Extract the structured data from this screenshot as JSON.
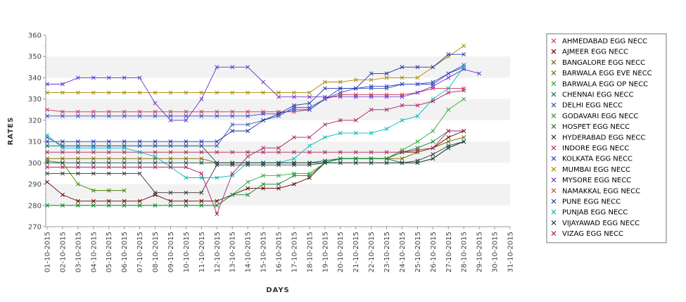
{
  "chart_data": {
    "type": "line",
    "xlabel": "DAYS",
    "ylabel": "RATES",
    "ylim": [
      270,
      360
    ],
    "yticks": [
      270,
      280,
      290,
      300,
      310,
      320,
      330,
      340,
      350,
      360
    ],
    "grid": "alternating horizontal bands",
    "legend_position": "right",
    "categories": [
      "01-10-2015",
      "02-10-2015",
      "03-10-2015",
      "04-10-2015",
      "05-10-2015",
      "06-10-2015",
      "07-10-2015",
      "08-10-2015",
      "09-10-2015",
      "10-10-2015",
      "11-10-2015",
      "12-10-2015",
      "13-10-2015",
      "14-10-2015",
      "15-10-2015",
      "16-10-2015",
      "17-10-2015",
      "18-10-2015",
      "19-10-2015",
      "20-10-2015",
      "21-10-2015",
      "22-10-2015",
      "23-10-2015",
      "24-10-2015",
      "25-10-2015",
      "26-10-2015",
      "27-10-2015",
      "28-10-2015",
      "29-10-2015",
      "30-10-2015",
      "31-10-2015"
    ],
    "series": [
      {
        "name": "AHMEDABAD EGG NECC",
        "color": "#cc3355",
        "values": [
          325,
          324,
          324,
          324,
          324,
          324,
          324,
          324,
          324,
          324,
          324,
          324,
          324,
          324,
          324,
          324,
          324,
          325,
          330,
          332,
          332,
          332,
          332,
          332,
          333,
          335,
          335,
          335,
          null,
          null,
          null
        ]
      },
      {
        "name": "AJMEER EGG NECC",
        "color": "#660000",
        "values": [
          291,
          285,
          282,
          282,
          282,
          282,
          282,
          285,
          282,
          282,
          282,
          282,
          285,
          288,
          288,
          288,
          290,
          293,
          300,
          302,
          302,
          302,
          302,
          305,
          305,
          307,
          312,
          315,
          null,
          null,
          null
        ]
      },
      {
        "name": "BANGALORE EGG NECC",
        "color": "#776600",
        "values": [
          302,
          302,
          302,
          302,
          302,
          302,
          302,
          302,
          302,
          302,
          302,
          300,
          300,
          300,
          300,
          300,
          300,
          300,
          301,
          302,
          302,
          302,
          302,
          302,
          305,
          307,
          310,
          312,
          null,
          null,
          null
        ]
      },
      {
        "name": "BARWALA EGG EVE NECC",
        "color": "#448800",
        "values": [
          301,
          300,
          290,
          287,
          287,
          287,
          null,
          null,
          null,
          null,
          null,
          null,
          null,
          null,
          null,
          null,
          null,
          null,
          null,
          null,
          null,
          null,
          null,
          null,
          null,
          null,
          null,
          null,
          null,
          null,
          null
        ]
      },
      {
        "name": "BARWALA EGG OP NECC",
        "color": "#33aa33",
        "values": [
          280,
          280,
          280,
          280,
          280,
          280,
          280,
          280,
          280,
          280,
          280,
          280,
          285,
          291,
          294,
          294,
          295,
          295,
          300,
          302,
          302,
          302,
          302,
          306,
          310,
          315,
          325,
          330,
          null,
          null,
          null
        ]
      },
      {
        "name": "CHENNAI EGG NECC",
        "color": "#006655",
        "values": [
          308,
          308,
          308,
          308,
          308,
          308,
          308,
          308,
          308,
          308,
          308,
          300,
          300,
          300,
          300,
          300,
          300,
          300,
          301,
          302,
          302,
          302,
          302,
          300,
          300,
          302,
          307,
          310,
          null,
          null,
          null
        ]
      },
      {
        "name": "DELHI EGG NECC",
        "color": "#3355aa",
        "values": [
          312,
          308,
          308,
          308,
          308,
          308,
          308,
          308,
          308,
          308,
          308,
          308,
          318,
          318,
          320,
          322,
          326,
          326,
          330,
          333,
          335,
          335,
          335,
          337,
          337,
          338,
          342,
          346,
          null,
          null,
          null
        ]
      },
      {
        "name": "GODAVARI EGG NECC",
        "color": "#558833",
        "values": [
          null,
          null,
          null,
          null,
          null,
          null,
          null,
          null,
          null,
          null,
          null,
          null,
          null,
          null,
          null,
          null,
          null,
          null,
          null,
          null,
          null,
          null,
          null,
          null,
          null,
          null,
          null,
          null,
          null,
          null,
          null
        ]
      },
      {
        "name": "HOSPET EGG NECC",
        "color": "#118833",
        "values": [
          280,
          280,
          280,
          280,
          280,
          280,
          280,
          280,
          280,
          280,
          280,
          280,
          285,
          285,
          290,
          290,
          294,
          294,
          300,
          302,
          302,
          302,
          302,
          305,
          307,
          310,
          315,
          315,
          null,
          null,
          null
        ]
      },
      {
        "name": "HYDERABAD EGG NECC",
        "color": "#333333",
        "values": [
          295,
          295,
          295,
          295,
          295,
          295,
          295,
          286,
          286,
          286,
          286,
          299,
          299,
          299,
          299,
          299,
          299,
          299,
          300,
          300,
          300,
          300,
          300,
          300,
          300,
          302,
          307,
          310,
          null,
          null,
          null
        ]
      },
      {
        "name": "INDORE EGG NECC",
        "color": "#aa2255",
        "values": [
          305,
          305,
          305,
          305,
          305,
          305,
          305,
          305,
          305,
          305,
          305,
          305,
          305,
          305,
          305,
          305,
          305,
          305,
          305,
          305,
          305,
          305,
          305,
          305,
          306,
          307,
          315,
          315,
          null,
          null,
          null
        ]
      },
      {
        "name": "KOLKATA EGG NECC",
        "color": "#3344cc",
        "values": [
          322,
          322,
          322,
          322,
          322,
          322,
          322,
          322,
          322,
          322,
          322,
          322,
          322,
          322,
          323,
          323,
          325,
          325,
          330,
          335,
          335,
          336,
          336,
          337,
          337,
          337,
          342,
          345,
          null,
          null,
          null
        ]
      },
      {
        "name": "MUMBAI EGG NECC",
        "color": "#aa8800",
        "values": [
          333,
          333,
          333,
          333,
          333,
          333,
          333,
          333,
          333,
          333,
          333,
          333,
          333,
          333,
          333,
          333,
          333,
          333,
          338,
          338,
          339,
          339,
          340,
          340,
          340,
          345,
          350,
          355,
          null,
          null,
          null
        ]
      },
      {
        "name": "MYSORE EGG NECC",
        "color": "#6633cc",
        "values": [
          337,
          337,
          340,
          340,
          340,
          340,
          340,
          328,
          320,
          320,
          330,
          345,
          345,
          345,
          338,
          331,
          331,
          331,
          331,
          331,
          331,
          331,
          331,
          331,
          333,
          336,
          340,
          344,
          342,
          null,
          null
        ]
      },
      {
        "name": "NAMAKKAL EGG NECC",
        "color": "#cc5533",
        "values": [
          null,
          null,
          null,
          null,
          null,
          null,
          null,
          null,
          null,
          null,
          null,
          null,
          null,
          null,
          null,
          null,
          null,
          null,
          null,
          null,
          null,
          null,
          null,
          null,
          null,
          null,
          null,
          null,
          null,
          null,
          null
        ]
      },
      {
        "name": "PUNE EGG NECC",
        "color": "#2233aa",
        "values": [
          310,
          310,
          310,
          310,
          310,
          310,
          310,
          310,
          310,
          310,
          310,
          310,
          315,
          315,
          320,
          323,
          327,
          328,
          335,
          335,
          335,
          342,
          342,
          345,
          345,
          345,
          351,
          351,
          null,
          null,
          null
        ]
      },
      {
        "name": "PUNJAB EGG NECC",
        "color": "#00bbbb",
        "values": [
          313,
          307,
          307,
          307,
          307,
          307,
          305,
          303,
          298,
          293,
          293,
          293,
          294,
          300,
          300,
          300,
          302,
          308,
          312,
          314,
          314,
          314,
          316,
          320,
          322,
          330,
          335,
          345,
          null,
          null,
          null
        ]
      },
      {
        "name": "VIJAYAWAD EGG NECC",
        "color": "#114444",
        "values": [
          300,
          300,
          300,
          300,
          300,
          300,
          300,
          300,
          300,
          300,
          300,
          300,
          300,
          300,
          300,
          300,
          300,
          300,
          300,
          300,
          300,
          300,
          300,
          300,
          301,
          304,
          308,
          310,
          null,
          null,
          null
        ]
      },
      {
        "name": "VIZAG EGG NECC",
        "color": "#aa2266",
        "values": [
          298,
          298,
          298,
          298,
          298,
          298,
          298,
          298,
          298,
          298,
          295,
          276,
          295,
          303,
          307,
          307,
          312,
          312,
          318,
          320,
          320,
          325,
          325,
          327,
          327,
          329,
          333,
          334,
          null,
          null,
          null
        ]
      }
    ]
  }
}
